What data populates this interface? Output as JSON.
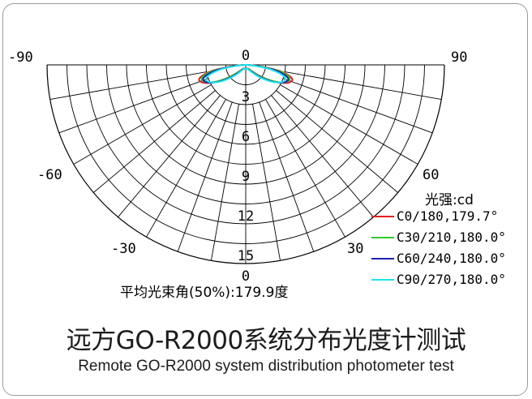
{
  "chart_data": {
    "type": "polar",
    "unit_label": "光强:cd",
    "radial_ticks": [
      "0",
      "3",
      "6",
      "9",
      "12",
      "15"
    ],
    "radial_max": 15,
    "angle_labels": {
      "left": [
        "-90",
        "-60",
        "-30"
      ],
      "right": [
        "90",
        "60",
        "30"
      ],
      "top": "0"
    },
    "beam_angle_label": "平均光束角(50%):179.9度",
    "series": [
      {
        "name": "C0/180,179.7°",
        "color": "#e02020",
        "peak_angle_deg": 72,
        "peak_value": 3.7
      },
      {
        "name": "C30/210,180.0°",
        "color": "#2ecc2e",
        "peak_angle_deg": 72,
        "peak_value": 3.5
      },
      {
        "name": "C60/240,180.0°",
        "color": "#1f22a8",
        "peak_angle_deg": 71,
        "peak_value": 3.4
      },
      {
        "name": "C90/270,180.0°",
        "color": "#1de5f0",
        "peak_angle_deg": 70,
        "peak_value": 3.2
      }
    ]
  },
  "caption": {
    "title_cn": "远方GO-R2000系统分布光度计测试",
    "title_en": "Remote GO-R2000 system distribution photometer test"
  }
}
